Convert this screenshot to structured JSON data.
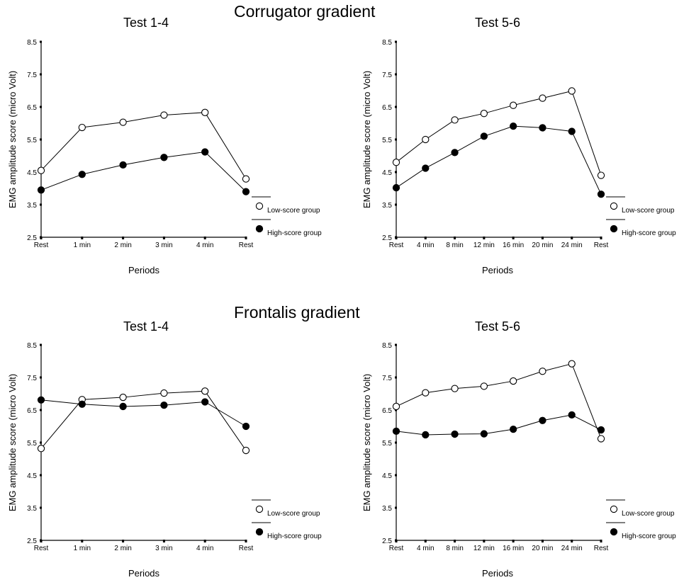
{
  "section_titles": [
    "Corrugator gradient",
    "Frontalis gradient"
  ],
  "legend": {
    "low_label": "Low-score group",
    "high_label": "High-score group"
  },
  "chart_data": [
    {
      "type": "line",
      "title": "Test 1-4",
      "section": "Corrugator gradient",
      "xlabel": "Periods",
      "ylabel": "EMG amplitude score (micro Volt)",
      "ylim": [
        2.5,
        8.5
      ],
      "yticks": [
        "2.5",
        "3.5",
        "4.5",
        "5.5",
        "6.5",
        "7.5",
        "8.5"
      ],
      "categories": [
        "Rest",
        "1 min",
        "2 min",
        "3 min",
        "4 min",
        "Rest"
      ],
      "series": [
        {
          "name": "Low-score group",
          "marker": "open-circle",
          "values": [
            4.55,
            5.87,
            6.03,
            6.25,
            6.33,
            4.29
          ]
        },
        {
          "name": "High-score group",
          "marker": "filled-circle",
          "values": [
            3.95,
            4.43,
            4.72,
            4.95,
            5.12,
            3.9
          ]
        }
      ],
      "grid": false
    },
    {
      "type": "line",
      "title": "Test 5-6",
      "section": "Corrugator gradient",
      "xlabel": "Periods",
      "ylabel": "EMG amplitude score (micro Volt)",
      "ylim": [
        2.5,
        8.5
      ],
      "yticks": [
        "2.5",
        "3.5",
        "4.5",
        "5.5",
        "6.5",
        "7.5",
        "8.5"
      ],
      "categories": [
        "Rest",
        "4 min",
        "8 min",
        "12 min",
        "16 min",
        "20 min",
        "24 min",
        "Rest"
      ],
      "series": [
        {
          "name": "Low-score group",
          "marker": "open-circle",
          "values": [
            4.8,
            5.5,
            6.1,
            6.3,
            6.55,
            6.77,
            6.99,
            4.4
          ]
        },
        {
          "name": "High-score group",
          "marker": "filled-circle",
          "values": [
            4.02,
            4.62,
            5.1,
            5.6,
            5.91,
            5.86,
            5.75,
            3.82
          ]
        }
      ],
      "grid": false
    },
    {
      "type": "line",
      "title": "Test 1-4",
      "section": "Frontalis gradient",
      "xlabel": "Periods",
      "ylabel": "EMG amplitude score (micro Volt)",
      "ylim": [
        2.5,
        8.5
      ],
      "yticks": [
        "2.5",
        "3.5",
        "4.5",
        "5.5",
        "6.5",
        "7.5",
        "8.5"
      ],
      "categories": [
        "Rest",
        "1 min",
        "2 min",
        "3 min",
        "4 min",
        "Rest"
      ],
      "series": [
        {
          "name": "Low-score group",
          "marker": "open-circle",
          "values": [
            5.32,
            6.82,
            6.89,
            7.02,
            7.08,
            5.26
          ]
        },
        {
          "name": "High-score group",
          "marker": "filled-circle",
          "values": [
            6.81,
            6.68,
            6.61,
            6.65,
            6.75,
            6.0
          ]
        }
      ],
      "grid": false
    },
    {
      "type": "line",
      "title": "Test 5-6",
      "section": "Frontalis gradient",
      "xlabel": "Periods",
      "ylabel": "EMG amplitude score (micro Volt)",
      "ylim": [
        2.5,
        8.5
      ],
      "yticks": [
        "2.5",
        "3.5",
        "4.5",
        "5.5",
        "6.5",
        "7.5",
        "8.5"
      ],
      "categories": [
        "Rest",
        "4 min",
        "8 min",
        "12 min",
        "16 min",
        "20 min",
        "24 min",
        "Rest"
      ],
      "series": [
        {
          "name": "Low-score group",
          "marker": "open-circle",
          "values": [
            6.61,
            7.03,
            7.16,
            7.23,
            7.39,
            7.69,
            7.92,
            5.62
          ]
        },
        {
          "name": "High-score group",
          "marker": "filled-circle",
          "values": [
            5.85,
            5.74,
            5.76,
            5.77,
            5.91,
            6.18,
            6.35,
            5.89
          ]
        }
      ],
      "grid": false
    }
  ]
}
